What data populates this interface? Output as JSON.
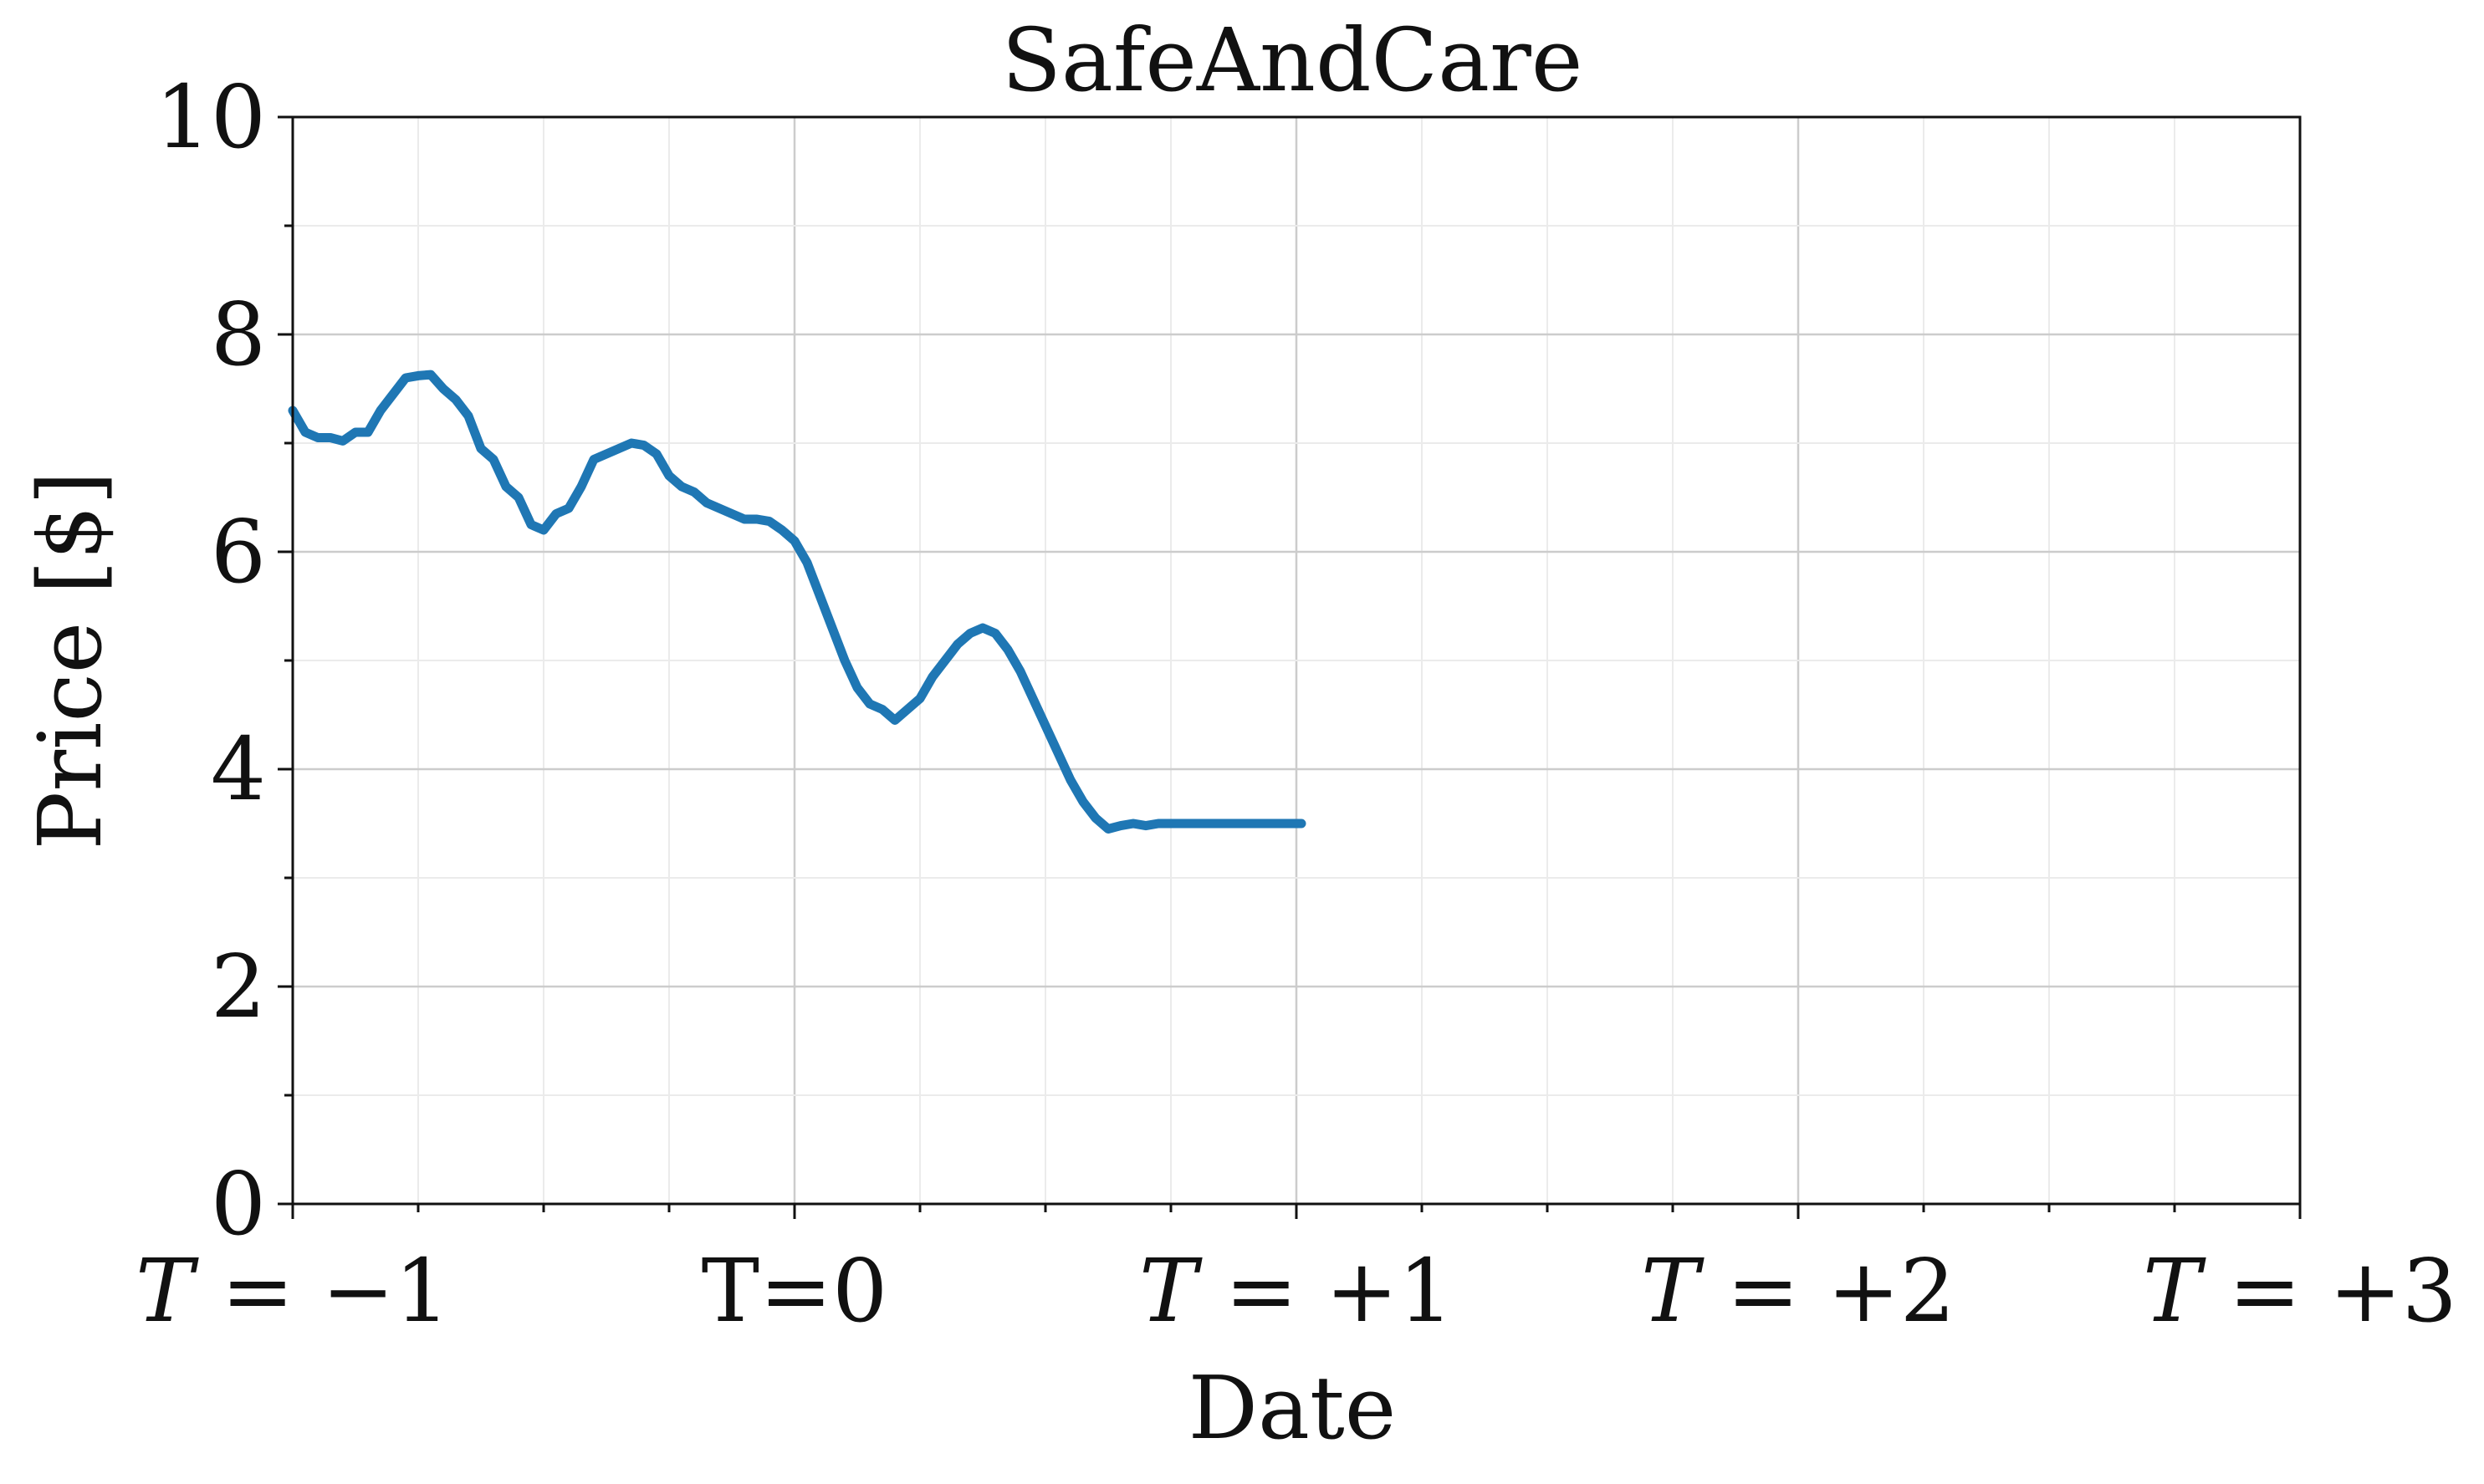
{
  "chart_data": {
    "type": "line",
    "title": "SafeAndCare",
    "xlabel": "Date",
    "ylabel": "Price [$]",
    "x_tick_labels": [
      {
        "pos": -1,
        "var": "T",
        "eq": " = ",
        "num": "−1"
      },
      {
        "pos": 0,
        "text": "T=0"
      },
      {
        "pos": 1,
        "var": "T",
        "eq": " = ",
        "num": "+1"
      },
      {
        "pos": 2,
        "var": "T",
        "eq": " = ",
        "num": "+2"
      },
      {
        "pos": 3,
        "var": "T",
        "eq": " = ",
        "num": "+3"
      }
    ],
    "y_ticks": [
      0,
      2,
      4,
      6,
      8,
      10
    ],
    "xlim": [
      -1,
      3
    ],
    "ylim": [
      0,
      10
    ],
    "grid": true,
    "line_color": "#1f77b4",
    "series": [
      {
        "x": [
          -1.0,
          -0.975,
          -0.95,
          -0.925,
          -0.9,
          -0.875,
          -0.85,
          -0.825,
          -0.8,
          -0.775,
          -0.75,
          -0.725,
          -0.7,
          -0.675,
          -0.65,
          -0.625,
          -0.6,
          -0.575,
          -0.55,
          -0.525,
          -0.5,
          -0.475,
          -0.45,
          -0.425,
          -0.4,
          -0.375,
          -0.35,
          -0.325,
          -0.3,
          -0.275,
          -0.25,
          -0.225,
          -0.2,
          -0.175,
          -0.15,
          -0.125,
          -0.1,
          -0.075,
          -0.05,
          -0.025,
          0.0,
          0.025,
          0.05,
          0.075,
          0.1,
          0.125,
          0.15,
          0.175,
          0.2,
          0.225,
          0.25,
          0.275,
          0.3,
          0.325,
          0.35,
          0.375,
          0.4,
          0.425,
          0.45,
          0.475,
          0.5,
          0.525,
          0.55,
          0.575,
          0.6,
          0.625,
          0.65,
          0.675,
          0.7,
          0.725,
          0.75,
          0.775,
          0.8,
          0.825,
          0.85,
          0.875,
          0.9,
          0.925,
          0.95,
          0.975,
          1.0,
          1.01
        ],
        "y": [
          7.3,
          7.1,
          7.05,
          7.05,
          7.02,
          7.1,
          7.1,
          7.3,
          7.45,
          7.6,
          7.62,
          7.63,
          7.5,
          7.4,
          7.25,
          6.95,
          6.85,
          6.6,
          6.5,
          6.25,
          6.2,
          6.35,
          6.4,
          6.6,
          6.85,
          6.9,
          6.95,
          7.0,
          6.98,
          6.9,
          6.7,
          6.6,
          6.55,
          6.45,
          6.4,
          6.35,
          6.3,
          6.3,
          6.28,
          6.2,
          6.1,
          5.9,
          5.6,
          5.3,
          5.0,
          4.75,
          4.6,
          4.55,
          4.45,
          4.55,
          4.65,
          4.85,
          5.0,
          5.15,
          5.25,
          5.3,
          5.25,
          5.1,
          4.9,
          4.65,
          4.4,
          4.15,
          3.9,
          3.7,
          3.55,
          3.45,
          3.48,
          3.5,
          3.48,
          3.5,
          3.5,
          3.5,
          3.5,
          3.5,
          3.5,
          3.5,
          3.5,
          3.5,
          3.5,
          3.5,
          3.5,
          3.5
        ]
      }
    ]
  }
}
